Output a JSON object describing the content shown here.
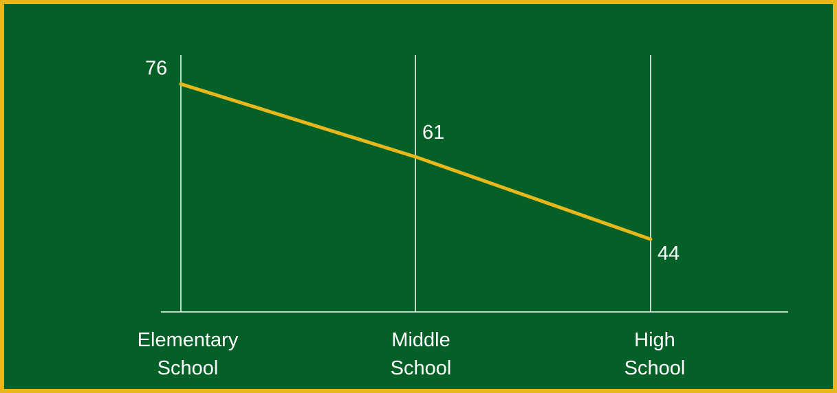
{
  "colors": {
    "background": "#046027",
    "border": "#E7B81D",
    "line": "#E7B81D",
    "axis": "#FFFFFF",
    "text": "#FFFFFF"
  },
  "chart_data": {
    "type": "line",
    "categories": [
      [
        "Elementary",
        "School"
      ],
      [
        "Middle",
        "School"
      ],
      [
        "High",
        "School"
      ]
    ],
    "series": [
      {
        "values": [
          76,
          61,
          44
        ]
      }
    ],
    "data_labels": [
      "76",
      "61",
      "44"
    ],
    "ylim": [
      29,
      82
    ],
    "grid": "vertical lines at each category"
  }
}
